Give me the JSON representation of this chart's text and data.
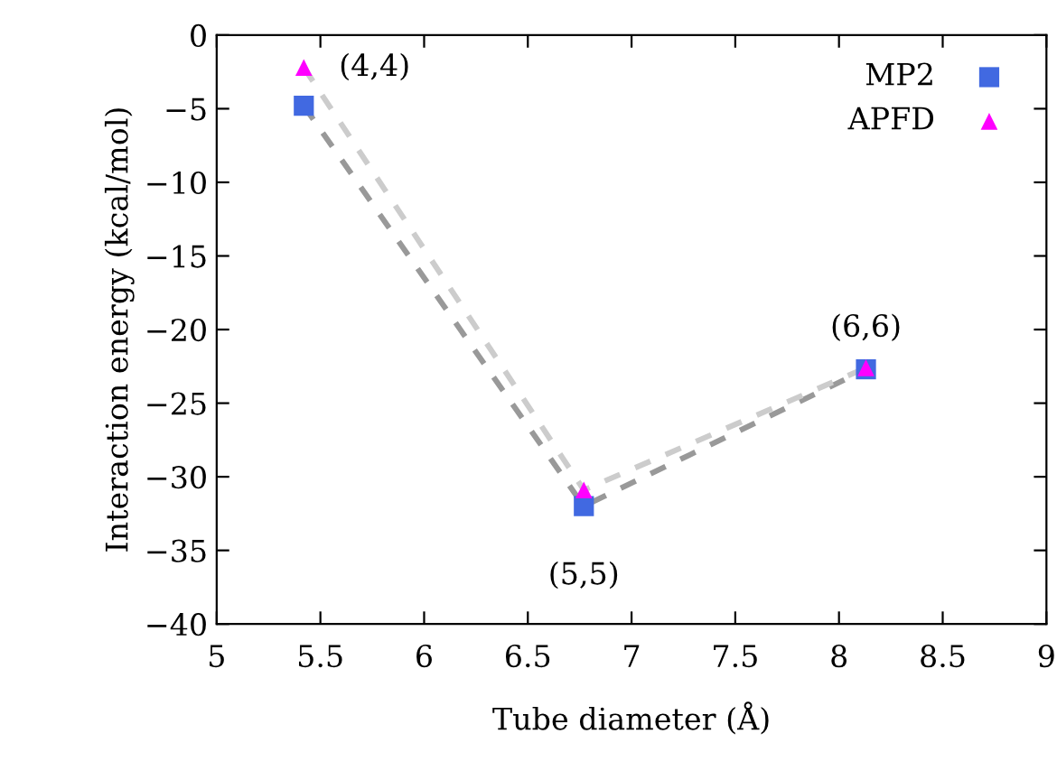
{
  "chart_data": {
    "type": "scatter",
    "xlabel": "Tube diameter (Å)",
    "ylabel": "Interaction energy (kcal/mol)",
    "xlim": [
      5,
      9
    ],
    "xticks": [
      5,
      5.5,
      6,
      6.5,
      7,
      7.5,
      8,
      8.5,
      9
    ],
    "ylim": [
      -40,
      0
    ],
    "yticks": [
      {
        "value": -40,
        "label": "−40"
      },
      {
        "value": -35,
        "label": "−35"
      },
      {
        "value": -30,
        "label": "−30"
      },
      {
        "value": -25,
        "label": "−25"
      },
      {
        "value": -20,
        "label": "−20"
      },
      {
        "value": -15,
        "label": "−15"
      },
      {
        "value": -10,
        "label": "−10"
      },
      {
        "value": -5,
        "label": "−5"
      },
      0
    ],
    "grid": false,
    "legend": "top right",
    "series": [
      {
        "type": "line",
        "color": "#999999",
        "line_style": "dashed",
        "marker": "none",
        "x": [
          5.42,
          6.77,
          8.13
        ],
        "values": [
          -4.8,
          -32.0,
          -22.7
        ]
      },
      {
        "type": "line",
        "color": "#cccccc",
        "line_style": "dashed",
        "marker": "none",
        "x": [
          5.42,
          6.77,
          8.13
        ],
        "values": [
          -2.2,
          -30.9,
          -22.6
        ]
      },
      {
        "name": "MP2",
        "color": "#4169e1",
        "marker": "square",
        "x": [
          5.42,
          6.77,
          8.13
        ],
        "values": [
          -4.8,
          -32.0,
          -22.7
        ]
      },
      {
        "name": "APFD",
        "color": "#ff00ff",
        "marker": "triangle",
        "x": [
          5.42,
          6.77,
          8.13
        ],
        "values": [
          -2.2,
          -30.9,
          -22.6
        ]
      }
    ],
    "annotations": [
      {
        "text": "(4,4)",
        "x": 5.42,
        "y": -2.2
      },
      {
        "text": "(5,5)",
        "x": 6.77,
        "y": -32.0
      },
      {
        "text": "(6,6)",
        "x": 8.13,
        "y": -22.6
      }
    ]
  }
}
